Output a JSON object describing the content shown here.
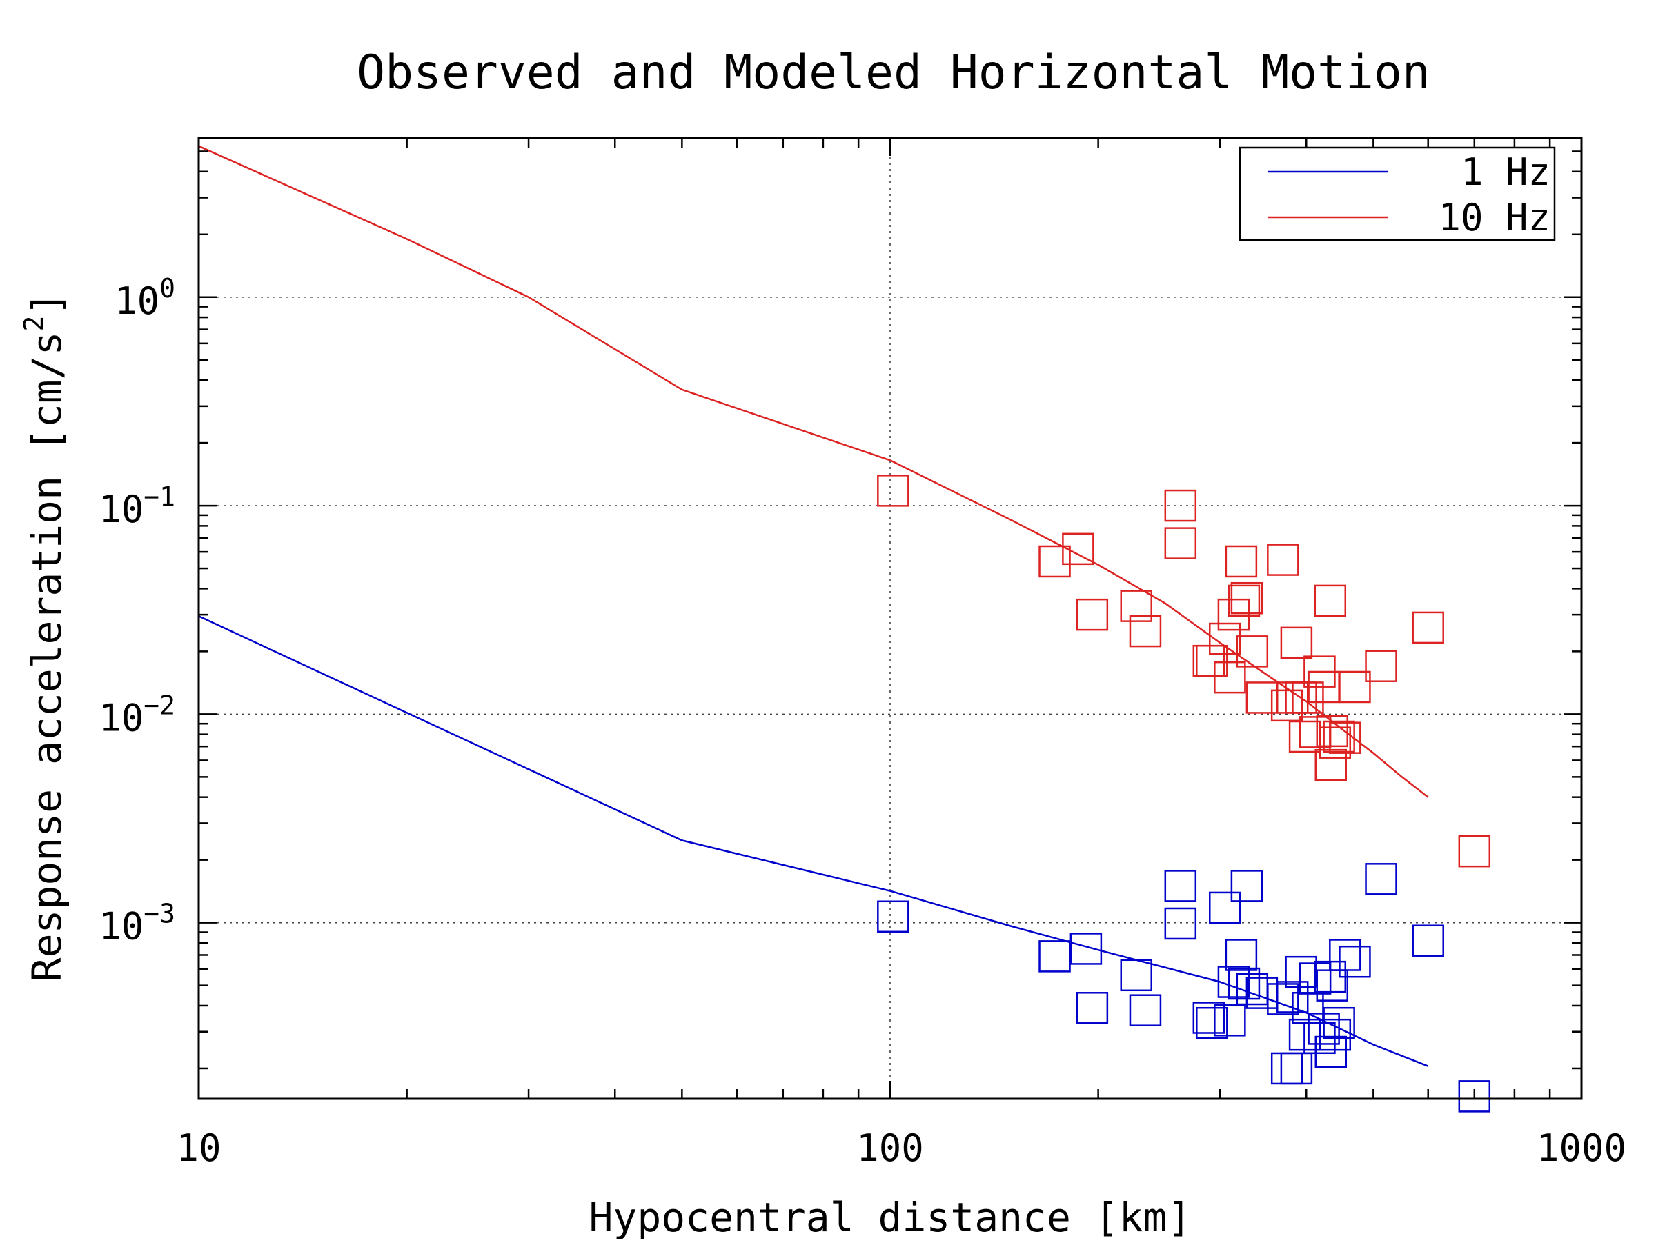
{
  "chart_data": {
    "type": "scatter",
    "title": "Observed and Modeled Horizontal Motion",
    "xlabel": "Hypocentral distance [km]",
    "ylabel": "Response acceleration [cm/s",
    "ylabel_superscript": "2",
    "ylabel_suffix": "]",
    "x_scale": "log",
    "y_scale": "log",
    "xlim": [
      10,
      1000
    ],
    "ylim": [
      0.000143,
      5.8
    ],
    "grid": true,
    "legend_position": "top-right",
    "x_ticks": [
      {
        "value": 10,
        "label": "10"
      },
      {
        "value": 100,
        "label": "100"
      },
      {
        "value": 1000,
        "label": "1000"
      }
    ],
    "y_ticks": [
      {
        "value": 1,
        "base": "10",
        "exp": "0"
      },
      {
        "value": 0.1,
        "base": "10",
        "exp": "−1"
      },
      {
        "value": 0.01,
        "base": "10",
        "exp": "−2"
      },
      {
        "value": 0.001,
        "base": "10",
        "exp": "−3"
      }
    ],
    "series": [
      {
        "name": "1 Hz",
        "color": "#0000cc",
        "model": {
          "x": [
            10,
            50,
            100,
            150,
            200,
            300,
            400,
            500,
            600
          ],
          "y": [
            0.0295,
            0.00248,
            0.00142,
            0.00096,
            0.00074,
            0.00052,
            0.00037,
            0.00026,
            0.000205
          ]
        },
        "observed": {
          "x": [
            101,
            173,
            192,
            196,
            227,
            234,
            263,
            263,
            289,
            292,
            305,
            310,
            314,
            322,
            325,
            328,
            334,
            345,
            370,
            375,
            382,
            387,
            393,
            398,
            402,
            412,
            418,
            424,
            433,
            434,
            436,
            440,
            446,
            455,
            470,
            513,
            600,
            700
          ],
          "y": [
            0.00107,
            0.00069,
            0.00075,
            0.00039,
            0.00056,
            0.00038,
            0.0015,
            0.00099,
            0.00035,
            0.00033,
            0.00118,
            0.00034,
            0.00052,
            0.0007,
            0.00051,
            0.0015,
            0.00048,
            0.00046,
            0.00043,
            0.0002,
            0.00044,
            0.0002,
            0.00058,
            0.00029,
            0.00039,
            0.00054,
            0.00028,
            0.00031,
            0.00055,
            0.00024,
            0.0005,
            0.00029,
            0.00033,
            0.0007,
            0.00065,
            0.00162,
            0.00082,
            0.000147
          ]
        }
      },
      {
        "name": "10 Hz",
        "color": "#dd2222",
        "model": {
          "x": [
            10,
            20,
            30,
            50,
            100,
            150,
            200,
            250,
            300,
            350,
            400,
            450,
            500,
            550,
            600
          ],
          "y": [
            5.3,
            1.9,
            1.0,
            0.36,
            0.165,
            0.085,
            0.052,
            0.034,
            0.022,
            0.0155,
            0.0115,
            0.0085,
            0.0065,
            0.005,
            0.004
          ]
        },
        "observed": {
          "x": [
            101,
            173,
            187,
            196,
            227,
            234,
            263,
            263,
            289,
            292,
            305,
            310,
            314,
            322,
            325,
            328,
            334,
            345,
            370,
            375,
            382,
            387,
            393,
            398,
            402,
            412,
            418,
            424,
            433,
            434,
            436,
            440,
            446,
            455,
            470,
            513,
            600,
            700
          ],
          "y": [
            0.118,
            0.054,
            0.062,
            0.03,
            0.033,
            0.025,
            0.1,
            0.066,
            0.018,
            0.018,
            0.023,
            0.015,
            0.03,
            0.054,
            0.035,
            0.036,
            0.02,
            0.012,
            0.055,
            0.011,
            0.012,
            0.022,
            0.012,
            0.0078,
            0.012,
            0.0082,
            0.016,
            0.0135,
            0.035,
            0.0057,
            0.0083,
            0.0073,
            0.0078,
            0.0077,
            0.0135,
            0.017,
            0.026,
            0.0022
          ]
        }
      }
    ]
  }
}
